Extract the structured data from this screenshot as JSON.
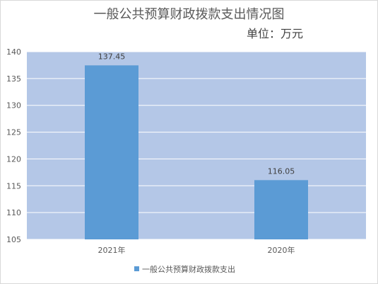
{
  "chart_data": {
    "type": "bar",
    "title": "一般公共预算财政拨款支出情况图",
    "subtitle": "单位：万元",
    "categories": [
      "2021年",
      "2020年"
    ],
    "series": [
      {
        "name": "一般公共预算财政拨款支出",
        "values": [
          137.45,
          116.05
        ]
      }
    ],
    "data_labels": [
      "137.45",
      "116.05"
    ],
    "ylim": [
      105,
      140
    ],
    "yticks": [
      105,
      110,
      115,
      120,
      125,
      130,
      135,
      140
    ],
    "grid": true,
    "legend_position": "bottom",
    "colors": {
      "bar": "#5b9bd5",
      "plot_background": "#b4c7e7",
      "grid": "#ffffff",
      "axis_text": "#595959"
    }
  }
}
